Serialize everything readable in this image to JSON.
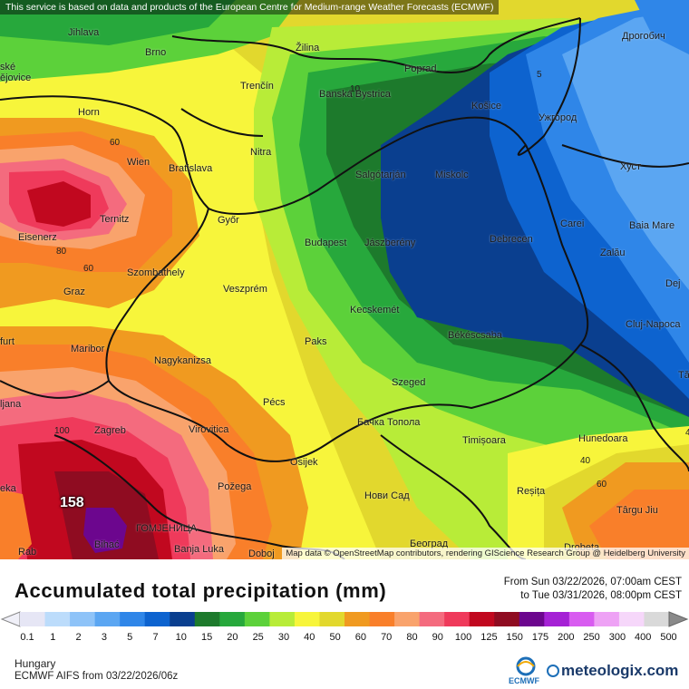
{
  "map": {
    "attribution_top": "This service is based on data and products of the European Centre for Medium-range Weather Forecasts (ECMWF)",
    "attribution_bottom": "Map data © OpenStreetMap contributors, rendering GIScience Research Group @ Heidelberg University",
    "cities": [
      {
        "name": "Jihlava"
      },
      {
        "name": "Brno"
      },
      {
        "name": "Žilina"
      },
      {
        "name": "Poprad"
      },
      {
        "name": "Дрогобич"
      },
      {
        "name": "Trenčín"
      },
      {
        "name": "Banská Bystrica"
      },
      {
        "name": "Košice"
      },
      {
        "name": "Ужгород"
      },
      {
        "name": "Horn"
      },
      {
        "name": "Nitra"
      },
      {
        "name": "Salgótarján"
      },
      {
        "name": "Miskolc"
      },
      {
        "name": "Wien"
      },
      {
        "name": "Bratislava"
      },
      {
        "name": "Хуст"
      },
      {
        "name": "Ternitz"
      },
      {
        "name": "Győr"
      },
      {
        "name": "Carei"
      },
      {
        "name": "Baia Mare"
      },
      {
        "name": "Eisenerz"
      },
      {
        "name": "Budapest"
      },
      {
        "name": "Jászberény"
      },
      {
        "name": "Debrecen"
      },
      {
        "name": "Szombathely"
      },
      {
        "name": "Zalău"
      },
      {
        "name": "Graz"
      },
      {
        "name": "Veszprém"
      },
      {
        "name": "Dej"
      },
      {
        "name": "Kecskemét"
      },
      {
        "name": "Cluj-Napoca"
      },
      {
        "name": "Maribor"
      },
      {
        "name": "Paks"
      },
      {
        "name": "Békéscsaba"
      },
      {
        "name": "Nagykanizsa"
      },
      {
        "name": "Szeged"
      },
      {
        "name": "Pécs"
      },
      {
        "name": "Zagreb"
      },
      {
        "name": "Virovitica"
      },
      {
        "name": "Бачка Топола"
      },
      {
        "name": "Hunedoara"
      },
      {
        "name": "Timișoara"
      },
      {
        "name": "Osijek"
      },
      {
        "name": "Požega"
      },
      {
        "name": "Reșița"
      },
      {
        "name": "Нови Сад"
      },
      {
        "name": "Târgu Jiu"
      },
      {
        "name": "ГОМЈЕНИЦА"
      },
      {
        "name": "Bihać"
      },
      {
        "name": "Banja Luka"
      },
      {
        "name": "Doboj"
      },
      {
        "name": "Београд"
      },
      {
        "name": "Drobeta"
      },
      {
        "name": "furt"
      },
      {
        "name": "ljana"
      },
      {
        "name": "eka"
      },
      {
        "name": "Rab"
      },
      {
        "name": "ské"
      },
      {
        "name": "ějovice"
      },
      {
        "name": "Tă"
      }
    ],
    "contour_labels": [
      "60",
      "80",
      "60",
      "100",
      "5",
      "10",
      "40",
      "60",
      "40"
    ],
    "max_value_label": "158"
  },
  "legend": {
    "title": "Accumulated total precipitation (mm)",
    "date_from": "From Sun 03/22/2026, 07:00am CEST",
    "date_to": "to Tue 03/31/2026, 08:00pm CEST",
    "ticks": [
      "0.1",
      "1",
      "2",
      "3",
      "5",
      "7",
      "10",
      "15",
      "20",
      "25",
      "30",
      "40",
      "50",
      "60",
      "70",
      "80",
      "90",
      "100",
      "125",
      "150",
      "175",
      "200",
      "250",
      "300",
      "400",
      "500"
    ],
    "colors": [
      "#e6e6f5",
      "#bcdcfb",
      "#8ec3f8",
      "#5ba6f2",
      "#2f86e8",
      "#0d63cf",
      "#0a3f8f",
      "#1d7a2c",
      "#27a83c",
      "#5cd13a",
      "#b8ec38",
      "#f7f53b",
      "#e2d82d",
      "#f09a20",
      "#f97f2a",
      "#f9a36c",
      "#f46b7e",
      "#ef3a5b",
      "#c1081f",
      "#8f0c21",
      "#6c068e",
      "#a521d5",
      "#d85cf0",
      "#eea2f5",
      "#f6d7fa",
      "#d9d9d9"
    ],
    "region": "Hungary",
    "model": "ECMWF AIFS from  03/22/2026/06z",
    "ecmwf_label": "ECMWF",
    "brand": "meteologix.com"
  }
}
